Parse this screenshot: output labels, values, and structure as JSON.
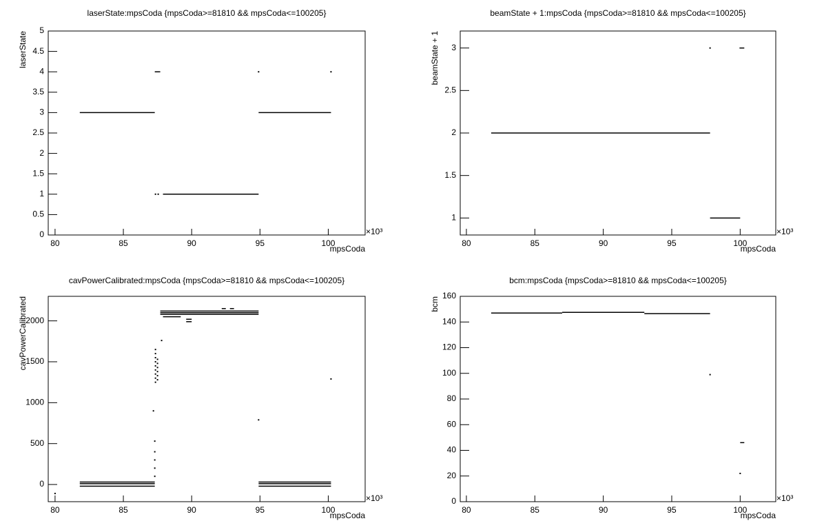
{
  "chart_data": [
    {
      "type": "scatter",
      "title": "laserState:mpsCoda {mpsCoda>=81810 && mpsCoda<=100205}",
      "x_label": "mpsCoda",
      "y_label": "laserState",
      "x_multiplier": "×10³",
      "xlim": [
        79.5,
        102.7
      ],
      "xticks": [
        80,
        85,
        90,
        95,
        100
      ],
      "ylim": [
        0,
        5
      ],
      "yticks": [
        0,
        0.5,
        1,
        1.5,
        2,
        2.5,
        3,
        3.5,
        4,
        4.5,
        5
      ],
      "segments": [
        {
          "x": [
            81.81,
            87.3
          ],
          "y": 3
        },
        {
          "x": [
            87.3,
            87.7
          ],
          "y": 4
        },
        {
          "x": [
            87.9,
            94.9
          ],
          "y": 1
        },
        {
          "x": [
            94.9,
            100.2
          ],
          "y": 3
        }
      ],
      "points": {
        "x": [
          87.35,
          87.55,
          94.9,
          100.2
        ],
        "y": [
          1,
          1,
          4,
          4
        ]
      }
    },
    {
      "type": "scatter",
      "title": "beamState + 1:mpsCoda {mpsCoda>=81810 && mpsCoda<=100205}",
      "x_label": "mpsCoda",
      "y_label": "beamState + 1",
      "x_multiplier": "×10³",
      "xlim": [
        79.55,
        102.6
      ],
      "xticks": [
        80,
        85,
        90,
        95,
        100
      ],
      "ylim": [
        0.8,
        3.2
      ],
      "yticks": [
        1,
        1.5,
        2,
        2.5,
        3
      ],
      "segments": [
        {
          "x": [
            81.81,
            97.8
          ],
          "y": 2
        },
        {
          "x": [
            97.8,
            100.0
          ],
          "y": 1
        },
        {
          "x": [
            99.95,
            100.3
          ],
          "y": 3
        }
      ],
      "points": {
        "x": [
          97.8
        ],
        "y": [
          3
        ]
      }
    },
    {
      "type": "scatter",
      "title": "cavPowerCalibrated:mpsCoda {mpsCoda>=81810 && mpsCoda<=100205}",
      "x_label": "mpsCoda",
      "y_label": "cavPowerCalibrated",
      "x_multiplier": "×10³",
      "xlim": [
        79.5,
        102.7
      ],
      "xticks": [
        80,
        85,
        90,
        95,
        100
      ],
      "ylim": [
        -210,
        2300
      ],
      "yticks": [
        0,
        500,
        1000,
        1500,
        2000
      ],
      "segments": [
        {
          "x": [
            81.81,
            87.3
          ],
          "y": 30
        },
        {
          "x": [
            81.81,
            87.3
          ],
          "y": 10
        },
        {
          "x": [
            81.81,
            87.3
          ],
          "y": -20
        },
        {
          "x": [
            94.9,
            100.2
          ],
          "y": 30
        },
        {
          "x": [
            94.9,
            100.2
          ],
          "y": 10
        },
        {
          "x": [
            94.9,
            100.2
          ],
          "y": -20
        },
        {
          "x": [
            87.7,
            94.9
          ],
          "y": 2120
        },
        {
          "x": [
            87.7,
            94.9
          ],
          "y": 2100
        },
        {
          "x": [
            87.7,
            94.9
          ],
          "y": 2080
        },
        {
          "x": [
            87.9,
            89.2
          ],
          "y": 2050
        },
        {
          "x": [
            89.6,
            90.0
          ],
          "y": 2020
        },
        {
          "x": [
            89.6,
            90.0
          ],
          "y": 1990
        },
        {
          "x": [
            92.2,
            92.5
          ],
          "y": 2150
        },
        {
          "x": [
            92.8,
            93.1
          ],
          "y": 2150
        }
      ],
      "points": {
        "x": [
          87.3,
          87.3,
          87.3,
          87.3,
          87.3,
          87.2,
          87.35,
          87.35,
          87.35,
          87.35,
          87.35,
          87.35,
          87.35,
          87.35,
          87.35,
          87.5,
          87.5,
          87.5,
          87.5,
          87.5,
          87.5,
          87.8,
          94.9,
          100.2,
          80.0
        ],
        "y": [
          100,
          200,
          300,
          400,
          530,
          900,
          1250,
          1300,
          1350,
          1400,
          1450,
          1500,
          1550,
          1600,
          1650,
          1280,
          1330,
          1380,
          1430,
          1480,
          1530,
          1760,
          790,
          1290,
          -110
        ]
      }
    },
    {
      "type": "scatter",
      "title": "bcm:mpsCoda {mpsCoda>=81810 && mpsCoda<=100205}",
      "x_label": "mpsCoda",
      "y_label": "bcm",
      "x_multiplier": "×10³",
      "xlim": [
        79.55,
        102.6
      ],
      "xticks": [
        80,
        85,
        90,
        95,
        100
      ],
      "ylim": [
        0,
        160
      ],
      "yticks": [
        0,
        20,
        40,
        60,
        80,
        100,
        120,
        140,
        160
      ],
      "segments": [
        {
          "x": [
            81.81,
            87.0
          ],
          "y": 147
        },
        {
          "x": [
            87.0,
            93.0
          ],
          "y": 147.5
        },
        {
          "x": [
            93.0,
            97.8
          ],
          "y": 146.5
        },
        {
          "x": [
            100.0,
            100.3
          ],
          "y": 46
        }
      ],
      "points": {
        "x": [
          97.8,
          100.0
        ],
        "y": [
          99,
          22
        ]
      }
    }
  ]
}
